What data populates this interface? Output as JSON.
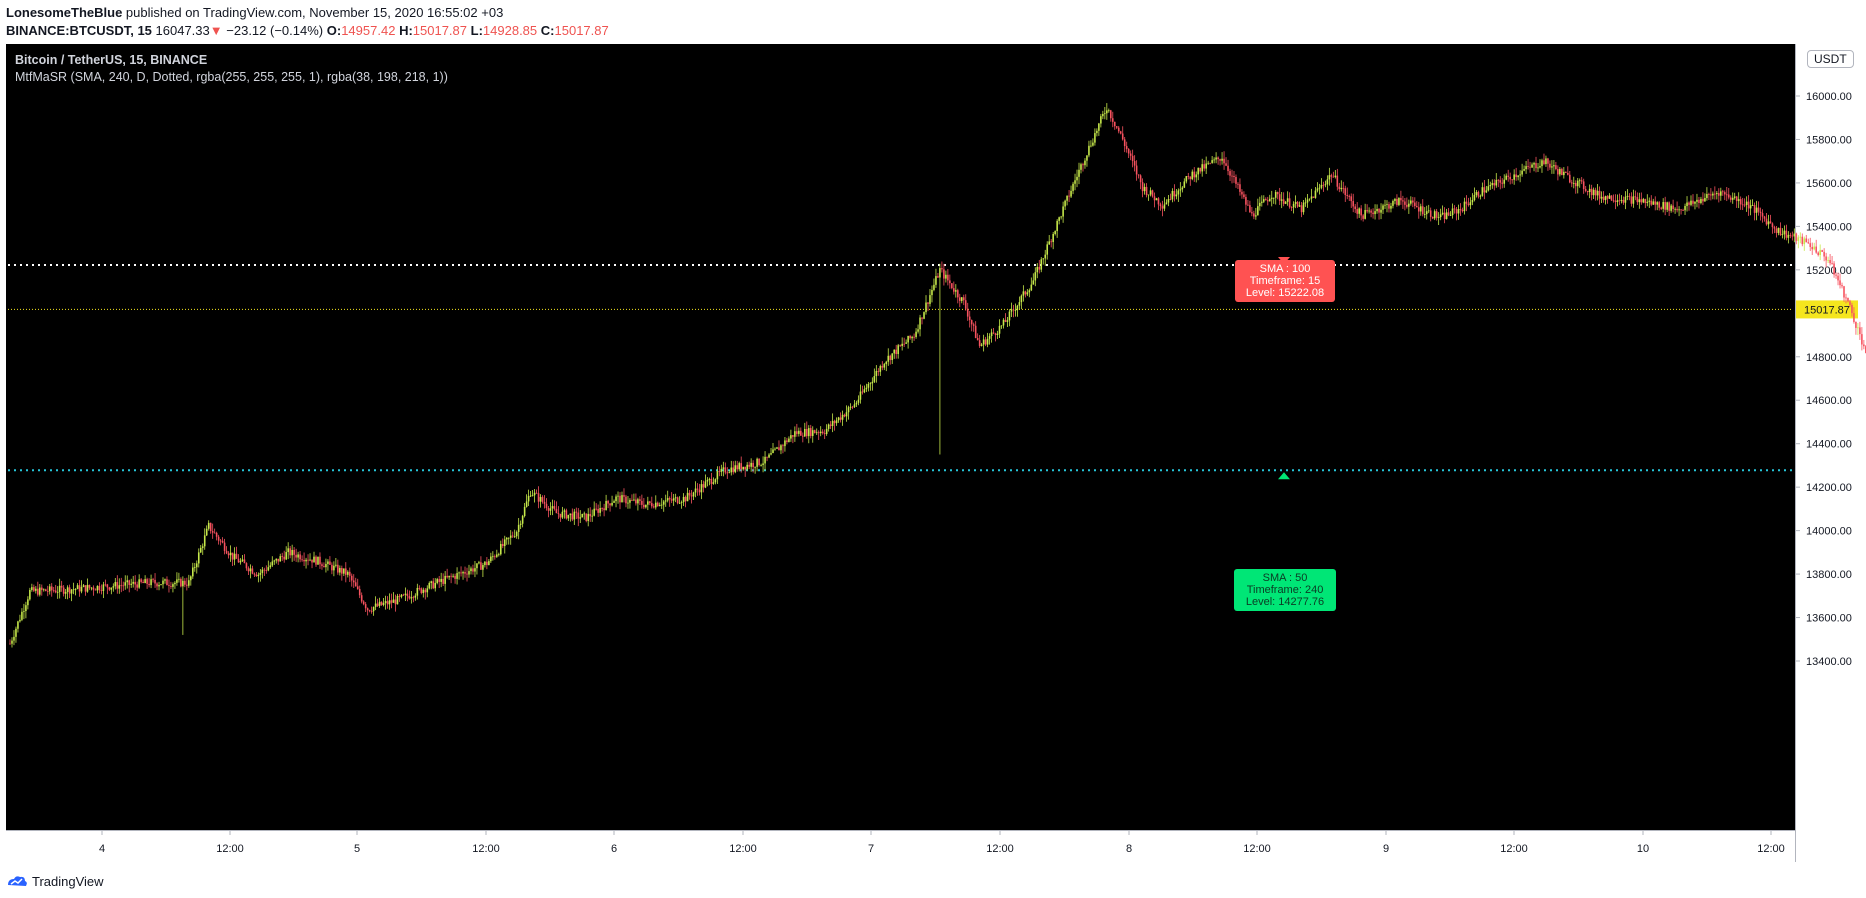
{
  "header": {
    "author": "LonesomeTheBlue",
    "published": "published on TradingView.com, November 15, 2020 16:55:02 +03",
    "symbol": "BINANCE:BTCUSDT, 15",
    "last": "16047.33",
    "change_arrow": "▼",
    "change": "−23.12 (−0.14%)",
    "o_label": "O:",
    "o_value": "14957.42",
    "h_label": "H:",
    "h_value": "15017.87",
    "l_label": "L:",
    "l_value": "14928.85",
    "c_label": "C:",
    "c_value": "15017.87"
  },
  "legend": {
    "title": "Bitcoin / TetherUS, 15, BINANCE",
    "indicator": "MtfMaSR (SMA, 240, D, Dotted, rgba(255, 255, 255, 1), rgba(38, 198, 218, 1))"
  },
  "currency": "USDT",
  "footer": {
    "brand": "TradingView",
    "brand_icon": "tradingview-logo-icon"
  },
  "colors": {
    "up": "#c6e84a",
    "down": "#f7525f",
    "accent_blue": "#2962ff",
    "sma100": "#ff5252",
    "sma50": "#00e676",
    "dotted_white": "#ffffff",
    "dotted_cyan": "#26c6da",
    "last_price": "#f5e61e"
  },
  "chart_data": {
    "type": "candlestick",
    "y_ticks": [
      "13400.00",
      "13600.00",
      "13800.00",
      "14000.00",
      "14200.00",
      "14400.00",
      "14600.00",
      "14800.00",
      "15200.00",
      "15400.00",
      "15600.00",
      "15800.00",
      "16000.00"
    ],
    "x_ticks": [
      "4",
      "12:00",
      "5",
      "12:00",
      "6",
      "12:00",
      "7",
      "12:00",
      "8",
      "12:00",
      "9",
      "12:00",
      "10",
      "12:00"
    ],
    "ylim": [
      13200,
      16200
    ],
    "last_price": 15017.87,
    "last_price_label": "15017.87",
    "levels": [
      {
        "name": "SMA : 100",
        "timeframe": "Timeframe: 15",
        "level_text": "Level: 15222.08",
        "value": 15222.08,
        "color": "#ff5252",
        "line": "dotted-white"
      },
      {
        "name": "SMA : 50",
        "timeframe": "Timeframe: 240",
        "level_text": "Level: 14277.76",
        "value": 14277.76,
        "color": "#00e676",
        "line": "dotted-cyan"
      }
    ],
    "path_anchors": [
      [
        0,
        13480
      ],
      [
        10,
        13720
      ],
      [
        30,
        13730
      ],
      [
        70,
        13760
      ],
      [
        90,
        13760
      ],
      [
        100,
        14020
      ],
      [
        112,
        13880
      ],
      [
        125,
        13800
      ],
      [
        140,
        13900
      ],
      [
        155,
        13860
      ],
      [
        170,
        13800
      ],
      [
        180,
        13640
      ],
      [
        195,
        13680
      ],
      [
        215,
        13760
      ],
      [
        240,
        13850
      ],
      [
        255,
        14000
      ],
      [
        262,
        14180
      ],
      [
        275,
        14080
      ],
      [
        290,
        14060
      ],
      [
        305,
        14150
      ],
      [
        320,
        14120
      ],
      [
        340,
        14150
      ],
      [
        360,
        14280
      ],
      [
        380,
        14320
      ],
      [
        395,
        14450
      ],
      [
        410,
        14460
      ],
      [
        425,
        14580
      ],
      [
        440,
        14780
      ],
      [
        455,
        14900
      ],
      [
        468,
        15200
      ],
      [
        480,
        15050
      ],
      [
        488,
        14850
      ],
      [
        500,
        14950
      ],
      [
        515,
        15150
      ],
      [
        530,
        15480
      ],
      [
        540,
        15700
      ],
      [
        552,
        15950
      ],
      [
        560,
        15800
      ],
      [
        570,
        15580
      ],
      [
        580,
        15500
      ],
      [
        595,
        15640
      ],
      [
        610,
        15720
      ],
      [
        625,
        15450
      ],
      [
        635,
        15550
      ],
      [
        650,
        15480
      ],
      [
        665,
        15640
      ],
      [
        680,
        15450
      ],
      [
        700,
        15520
      ],
      [
        720,
        15440
      ],
      [
        730,
        15480
      ],
      [
        740,
        15560
      ],
      [
        760,
        15650
      ],
      [
        772,
        15700
      ],
      [
        785,
        15620
      ],
      [
        800,
        15540
      ],
      [
        820,
        15520
      ],
      [
        840,
        15480
      ],
      [
        860,
        15560
      ],
      [
        875,
        15500
      ],
      [
        890,
        15380
      ],
      [
        905,
        15320
      ],
      [
        915,
        15250
      ],
      [
        925,
        15050
      ],
      [
        935,
        14800
      ],
      [
        940,
        14600
      ],
      [
        948,
        14850
      ],
      [
        955,
        14900
      ],
      [
        965,
        14800
      ],
      [
        975,
        14900
      ],
      [
        985,
        14850
      ],
      [
        993,
        15050
      ],
      [
        1000,
        15030
      ],
      [
        1008,
        15017.87
      ]
    ]
  }
}
